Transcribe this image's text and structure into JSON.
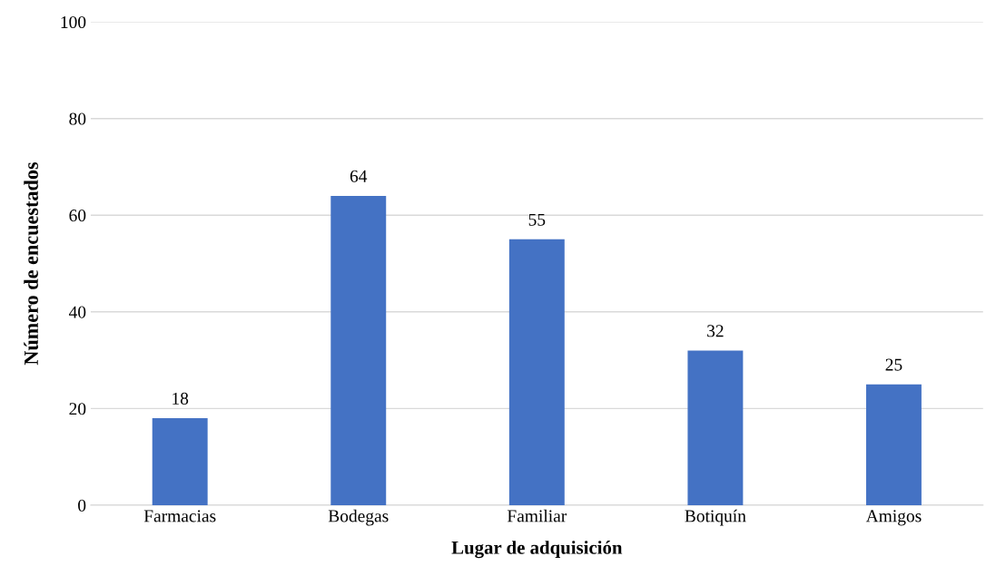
{
  "chart_data": {
    "type": "bar",
    "xlabel": "Lugar de adquisición",
    "ylabel": "Número de encuestados",
    "categories": [
      "Farmacias",
      "Bodegas",
      "Familiar",
      "Botiquín",
      "Amigos"
    ],
    "values": [
      18,
      64,
      55,
      32,
      25
    ],
    "color": "#4472c4",
    "ylim": [
      0,
      100
    ],
    "yticks": [
      0,
      20,
      40,
      60,
      80,
      100
    ],
    "grid": "y",
    "data_labels": true
  }
}
